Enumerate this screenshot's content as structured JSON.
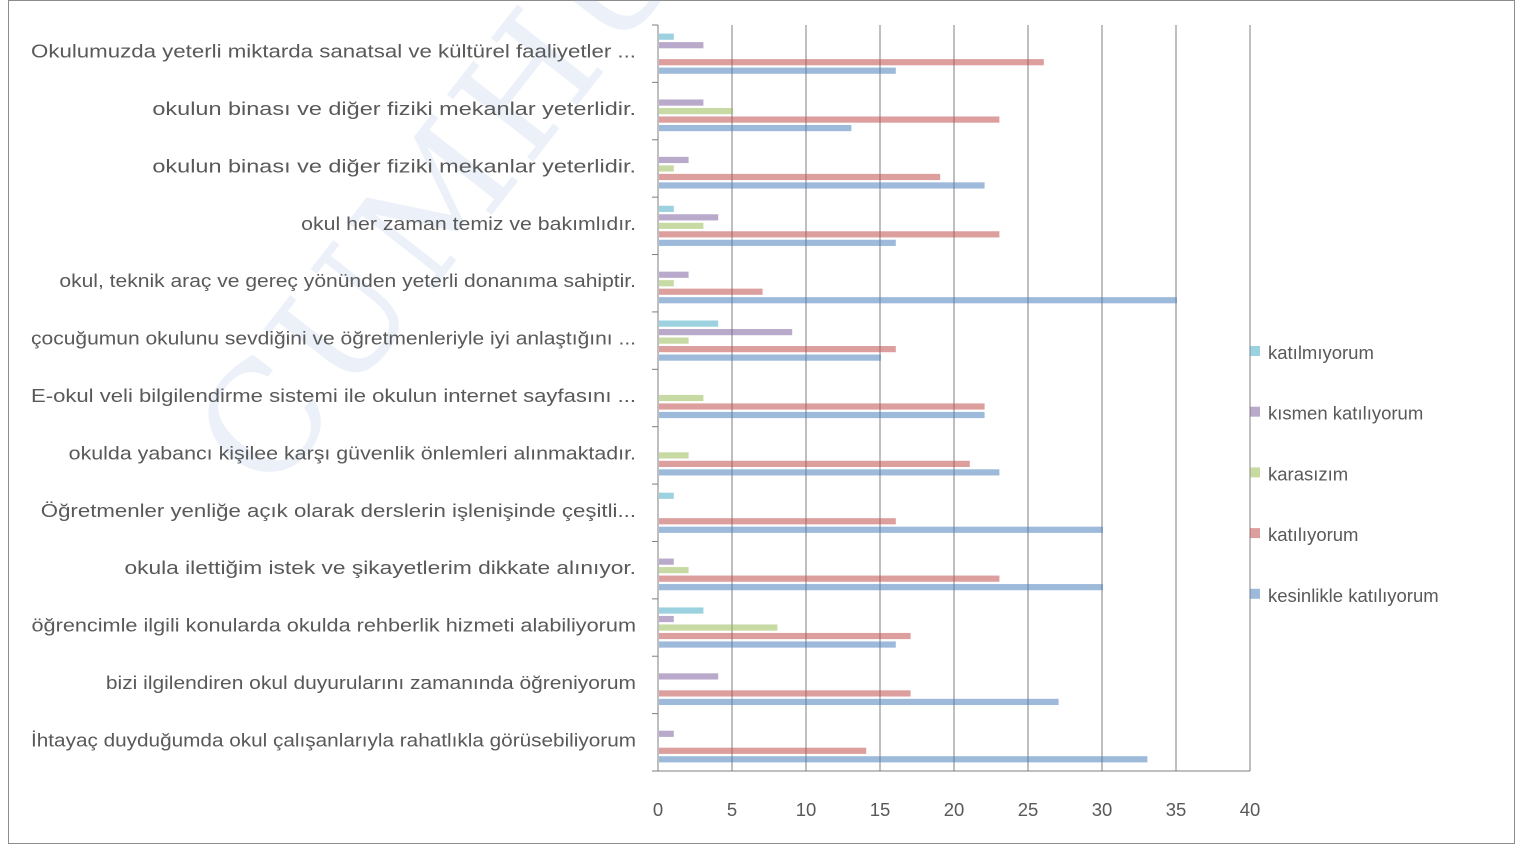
{
  "watermark": "CUMHURİYET İLKOKULU",
  "chart_data": {
    "type": "bar",
    "orientation": "horizontal",
    "categories": [
      "Okulumuzda yeterli miktarda  sanatsal  ve kültürel faaliyetler ...",
      "okulun binası ve diğer fiziki  mekanlar  yeterlidir.",
      "okulun binası ve diğer fiziki  mekanlar  yeterlidir.",
      "okul her zaman  temiz ve bakımlıdır.",
      "okul, teknik araç ve gereç yönünden yeterli donanıma sahiptir.",
      "çocuğumun okulunu sevdiğini ve öğretmenleriyle iyi anlaştığını ...",
      "E-okul veli bilgilendirme sistemi ile okulun internet sayfasını ...",
      "okulda yabancı kişilee karşı güvenlik önlemleri alınmaktadır.",
      "Öğretmenler yenliğe açık olarak derslerin işlenişinde çeşitli...",
      "okula ilettiğim istek ve şikayetlerim dikkate alınıyor.",
      "öğrencimle ilgili konularda okulda rehberlik hizmeti alabiliyorum",
      "bizi ilgilendiren okul duyurularını zamanında öğreniyorum",
      "İhtayaç duyduğumda  okul çalışanlarıyla rahatlıkla  görüsebiliyorum"
    ],
    "series": [
      {
        "name": "katılmıyorum",
        "color": "#4bacc6",
        "values": [
          1,
          0,
          0,
          1,
          0,
          4,
          0,
          0,
          1,
          0,
          3,
          0,
          0
        ]
      },
      {
        "name": "kısmen katılıyorum",
        "color": "#8064a2",
        "values": [
          3,
          3,
          2,
          4,
          2,
          9,
          0,
          0,
          0,
          1,
          1,
          4,
          1
        ]
      },
      {
        "name": "karasızım",
        "color": "#9bbb59",
        "values": [
          0,
          5,
          1,
          3,
          1,
          2,
          3,
          2,
          0,
          2,
          8,
          0,
          0
        ]
      },
      {
        "name": "katılıyorum",
        "color": "#c0504d",
        "values": [
          26,
          23,
          19,
          23,
          7,
          16,
          22,
          21,
          16,
          23,
          17,
          17,
          14
        ]
      },
      {
        "name": "kesinlikle katılıyorum",
        "color": "#4f81bd",
        "values": [
          16,
          13,
          22,
          16,
          35,
          15,
          22,
          23,
          30,
          30,
          16,
          27,
          33
        ]
      }
    ],
    "xlim": [
      0,
      40
    ],
    "xticks": [
      0,
      5,
      10,
      15,
      20,
      25,
      30,
      35,
      40
    ],
    "legend_position": "right",
    "legend_order": [
      "katılmıyorum",
      "kısmen katılıyorum",
      "karasızım",
      "katılıyorum",
      "kesinlikle katılıyorum"
    ],
    "grid": "vertical"
  }
}
